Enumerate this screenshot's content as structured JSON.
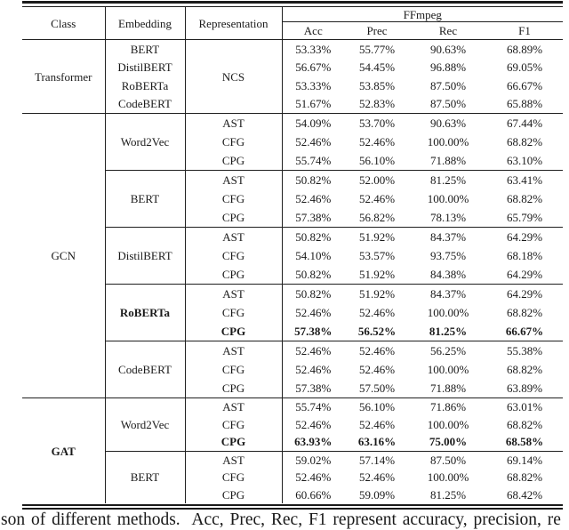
{
  "caption": {
    "text": "son of different methods.  Acc, Prec, Rec, F1 represent accuracy, precision, re"
  },
  "table": {
    "headers": {
      "class": "Class",
      "embedding": "Embedding",
      "representation": "Representation",
      "group": "FFmpeg",
      "metrics": [
        "Acc",
        "Prec",
        "Rec",
        "F1"
      ]
    },
    "sections": [
      {
        "class_label": "Transformer",
        "bold": false,
        "css": "sec-t",
        "rep_span": "NCS",
        "separators": false,
        "groups": [
          {
            "embedding": "BERT",
            "bold": false,
            "rows": [
              {
                "rep": null,
                "bold": false,
                "values": [
                  "53.33%",
                  "55.77%",
                  "90.63%",
                  "68.89%"
                ]
              }
            ]
          },
          {
            "embedding": "DistilBERT",
            "bold": false,
            "rows": [
              {
                "rep": null,
                "bold": false,
                "values": [
                  "56.67%",
                  "54.45%",
                  "96.88%",
                  "69.05%"
                ]
              }
            ]
          },
          {
            "embedding": "RoBERTa",
            "bold": false,
            "rows": [
              {
                "rep": null,
                "bold": false,
                "values": [
                  "53.33%",
                  "53.85%",
                  "87.50%",
                  "66.67%"
                ]
              }
            ]
          },
          {
            "embedding": "CodeBERT",
            "bold": false,
            "rows": [
              {
                "rep": null,
                "bold": false,
                "values": [
                  "51.67%",
                  "52.83%",
                  "87.50%",
                  "65.88%"
                ]
              }
            ]
          }
        ]
      },
      {
        "class_label": "GCN",
        "bold": false,
        "css": "sec-g",
        "rep_span": null,
        "separators": true,
        "groups": [
          {
            "embedding": "Word2Vec",
            "bold": false,
            "rows": [
              {
                "rep": "AST",
                "bold": false,
                "values": [
                  "54.09%",
                  "53.70%",
                  "90.63%",
                  "67.44%"
                ]
              },
              {
                "rep": "CFG",
                "bold": false,
                "values": [
                  "52.46%",
                  "52.46%",
                  "100.00%",
                  "68.82%"
                ]
              },
              {
                "rep": "CPG",
                "bold": false,
                "values": [
                  "55.74%",
                  "56.10%",
                  "71.88%",
                  "63.10%"
                ]
              }
            ]
          },
          {
            "embedding": "BERT",
            "bold": false,
            "rows": [
              {
                "rep": "AST",
                "bold": false,
                "values": [
                  "50.82%",
                  "52.00%",
                  "81.25%",
                  "63.41%"
                ]
              },
              {
                "rep": "CFG",
                "bold": false,
                "values": [
                  "52.46%",
                  "52.46%",
                  "100.00%",
                  "68.82%"
                ]
              },
              {
                "rep": "CPG",
                "bold": false,
                "values": [
                  "57.38%",
                  "56.82%",
                  "78.13%",
                  "65.79%"
                ]
              }
            ]
          },
          {
            "embedding": "DistilBERT",
            "bold": false,
            "rows": [
              {
                "rep": "AST",
                "bold": false,
                "values": [
                  "50.82%",
                  "51.92%",
                  "84.37%",
                  "64.29%"
                ]
              },
              {
                "rep": "CFG",
                "bold": false,
                "values": [
                  "54.10%",
                  "53.57%",
                  "93.75%",
                  "68.18%"
                ]
              },
              {
                "rep": "CPG",
                "bold": false,
                "values": [
                  "50.82%",
                  "51.92%",
                  "84.38%",
                  "64.29%"
                ]
              }
            ]
          },
          {
            "embedding": "RoBERTa",
            "bold": true,
            "rows": [
              {
                "rep": "AST",
                "bold": false,
                "values": [
                  "50.82%",
                  "51.92%",
                  "84.37%",
                  "64.29%"
                ]
              },
              {
                "rep": "CFG",
                "bold": false,
                "values": [
                  "52.46%",
                  "52.46%",
                  "100.00%",
                  "68.82%"
                ]
              },
              {
                "rep": "CPG",
                "bold": true,
                "values": [
                  "57.38%",
                  "56.52%",
                  "81.25%",
                  "66.67%"
                ]
              }
            ]
          },
          {
            "embedding": "CodeBERT",
            "bold": false,
            "rows": [
              {
                "rep": "AST",
                "bold": false,
                "values": [
                  "52.46%",
                  "52.46%",
                  "56.25%",
                  "55.38%"
                ]
              },
              {
                "rep": "CFG",
                "bold": false,
                "values": [
                  "52.46%",
                  "52.46%",
                  "100.00%",
                  "68.82%"
                ]
              },
              {
                "rep": "CPG",
                "bold": false,
                "values": [
                  "57.38%",
                  "57.50%",
                  "71.88%",
                  "63.89%"
                ]
              }
            ]
          }
        ]
      },
      {
        "class_label": "GAT",
        "bold": true,
        "css": "sec-a",
        "rep_span": null,
        "separators": true,
        "groups": [
          {
            "embedding": "Word2Vec",
            "bold": false,
            "rows": [
              {
                "rep": "AST",
                "bold": false,
                "values": [
                  "55.74%",
                  "56.10%",
                  "71.86%",
                  "63.01%"
                ]
              },
              {
                "rep": "CFG",
                "bold": false,
                "values": [
                  "52.46%",
                  "52.46%",
                  "100.00%",
                  "68.82%"
                ]
              },
              {
                "rep": "CPG",
                "bold": true,
                "values": [
                  "63.93%",
                  "63.16%",
                  "75.00%",
                  "68.58%"
                ]
              }
            ]
          },
          {
            "embedding": "BERT",
            "bold": false,
            "rows": [
              {
                "rep": "AST",
                "bold": false,
                "values": [
                  "59.02%",
                  "57.14%",
                  "87.50%",
                  "69.14%"
                ]
              },
              {
                "rep": "CFG",
                "bold": false,
                "values": [
                  "52.46%",
                  "52.46%",
                  "100.00%",
                  "68.82%"
                ]
              },
              {
                "rep": "CPG",
                "bold": false,
                "values": [
                  "60.66%",
                  "59.09%",
                  "81.25%",
                  "68.42%"
                ]
              }
            ]
          }
        ]
      }
    ]
  }
}
